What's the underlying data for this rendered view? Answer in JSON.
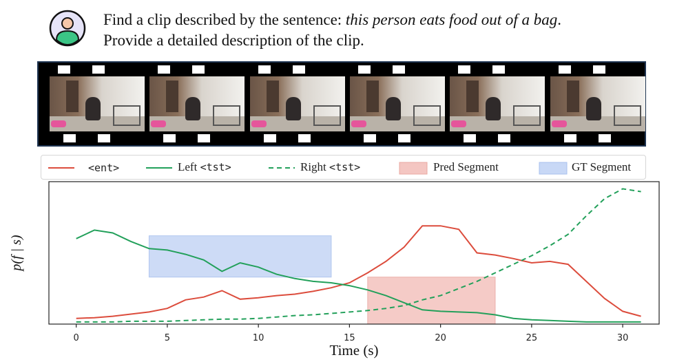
{
  "prompt": {
    "prefix": "Find a clip described by the sentence: ",
    "sentence": "this person eats food out of a bag",
    "suffix": ".",
    "line2": "Provide a detailed description of the clip."
  },
  "filmstrip": {
    "frame_count": 6
  },
  "legend": {
    "ent": "<ent>",
    "left_prefix": "Left ",
    "left_tag": "<tst>",
    "right_prefix": "Right ",
    "right_tag": "<tst>",
    "pred": "Pred Segment",
    "gt": "GT Segment"
  },
  "colors": {
    "red": "#dc4c3c",
    "green": "#22a05a",
    "pred_fill": "#f4c6c2",
    "gt_fill": "#c8d8f6",
    "avatar_bg": "#e6e4f8",
    "avatar_person": "#3bc586",
    "avatar_face": "#f5c7a9"
  },
  "chart_data": {
    "type": "line",
    "xlabel": "Time (s)",
    "ylabel": "p(f | s)",
    "xlim": [
      -1.5,
      32
    ],
    "ylim": [
      0,
      1
    ],
    "xticks": [
      0,
      5,
      10,
      15,
      20,
      25,
      30
    ],
    "pred_segment": [
      16,
      23
    ],
    "gt_segment": [
      4,
      14
    ],
    "x": [
      0,
      1,
      2,
      3,
      4,
      5,
      6,
      7,
      8,
      9,
      10,
      11,
      12,
      13,
      14,
      15,
      16,
      17,
      18,
      19,
      20,
      21,
      22,
      23,
      24,
      25,
      26,
      27,
      28,
      29,
      30,
      31
    ],
    "series": [
      {
        "name": "<ent>",
        "style": "solid",
        "color": "#dc4c3c",
        "values": [
          0.04,
          0.045,
          0.055,
          0.07,
          0.085,
          0.11,
          0.17,
          0.19,
          0.235,
          0.175,
          0.185,
          0.2,
          0.21,
          0.23,
          0.255,
          0.29,
          0.36,
          0.44,
          0.54,
          0.69,
          0.69,
          0.665,
          0.5,
          0.485,
          0.46,
          0.43,
          0.44,
          0.42,
          0.3,
          0.18,
          0.09,
          0.055
        ]
      },
      {
        "name": "Left <tst>",
        "style": "solid",
        "color": "#22a05a",
        "values": [
          0.6,
          0.66,
          0.64,
          0.58,
          0.53,
          0.52,
          0.49,
          0.45,
          0.37,
          0.43,
          0.4,
          0.35,
          0.32,
          0.3,
          0.29,
          0.27,
          0.24,
          0.2,
          0.15,
          0.1,
          0.09,
          0.085,
          0.08,
          0.065,
          0.04,
          0.03,
          0.025,
          0.02,
          0.015,
          0.015,
          0.015,
          0.015
        ]
      },
      {
        "name": "Right <tst>",
        "style": "dashed",
        "color": "#22a05a",
        "values": [
          0.015,
          0.015,
          0.015,
          0.02,
          0.02,
          0.02,
          0.025,
          0.03,
          0.035,
          0.035,
          0.04,
          0.05,
          0.06,
          0.065,
          0.075,
          0.085,
          0.095,
          0.11,
          0.13,
          0.17,
          0.2,
          0.25,
          0.3,
          0.36,
          0.42,
          0.48,
          0.55,
          0.63,
          0.76,
          0.88,
          0.95,
          0.93
        ]
      }
    ]
  }
}
